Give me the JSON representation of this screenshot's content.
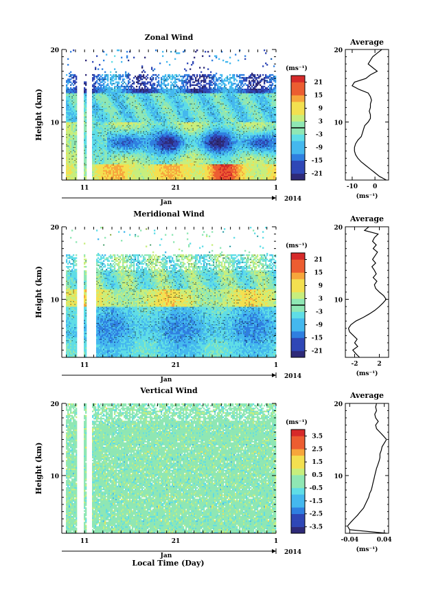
{
  "figure": {
    "xlabel_common": "Local Time (Day)",
    "colors": {
      "ramp": [
        "#2e2a78",
        "#2f47b6",
        "#2f7fe0",
        "#44b8ee",
        "#5fdde6",
        "#8fe7b4",
        "#c7ee7d",
        "#f3e050",
        "#f7a63c",
        "#ec5d31",
        "#d62a2a"
      ],
      "contour": "#000000",
      "zero_line": "#000000"
    }
  },
  "chart_data": [
    {
      "type": "heatmap",
      "id": "zonal",
      "title": "Zonal Wind",
      "ylabel": "Height (km)",
      "xlabel": "Jan",
      "year_label": "2014",
      "x_ticklabels": [
        "11",
        "21",
        "1"
      ],
      "x_tick_days": [
        11,
        21,
        32
      ],
      "x_range_days": [
        8.5,
        32
      ],
      "y_ticks": [
        10,
        20
      ],
      "ylim": [
        2,
        20
      ],
      "colorbar": {
        "unit": "(ms⁻¹)",
        "ticks": [
          "21",
          "15",
          "9",
          "3",
          "-3",
          "-9",
          "-15",
          "-21"
        ],
        "range": [
          -24,
          24
        ]
      },
      "gaps_days": [
        [
          10.2,
          10.9
        ],
        [
          11.2,
          11.8
        ]
      ],
      "description_fields": {
        "jet_height_km": 7,
        "jet_max_ms": -18,
        "surface_wind_ms": 15
      },
      "average_profile": {
        "title": "Average",
        "xlabel": "(ms⁻¹)",
        "x_ticklabels": [
          "-10",
          "0"
        ],
        "x_ticks": [
          -10,
          0
        ],
        "xlim": [
          -13,
          6
        ],
        "y_ticks": [
          10,
          20
        ],
        "ylim": [
          2,
          20
        ],
        "height_km": [
          2,
          2.5,
          3,
          3.5,
          4,
          4.5,
          5,
          5.5,
          6,
          6.5,
          7,
          7.5,
          8,
          8.5,
          9,
          9.5,
          10,
          10.5,
          11,
          11.5,
          12,
          12.5,
          13,
          13.5,
          14,
          14.5,
          15,
          15.5,
          16,
          16.5,
          17,
          17.5,
          18,
          18.5,
          19,
          19.5,
          20
        ],
        "value_ms": [
          5,
          2,
          0,
          -2,
          -4,
          -6,
          -7.5,
          -8.5,
          -9,
          -9,
          -8.5,
          -7.5,
          -6,
          -5.5,
          -5,
          -4.5,
          -3,
          -2,
          -2,
          -2.5,
          -2,
          -2,
          -1.5,
          -2,
          -3,
          -7,
          -10,
          -9,
          -4,
          -2,
          1,
          -1,
          -3,
          -2,
          -1,
          1,
          3
        ]
      }
    },
    {
      "type": "heatmap",
      "id": "meridional",
      "title": "Meridional Wind",
      "ylabel": "Height (km)",
      "xlabel": "Jan",
      "year_label": "2014",
      "x_ticklabels": [
        "11",
        "21",
        "1"
      ],
      "x_tick_days": [
        11,
        21,
        32
      ],
      "x_range_days": [
        8.5,
        32
      ],
      "y_ticks": [
        10,
        20
      ],
      "ylim": [
        2,
        20
      ],
      "colorbar": {
        "unit": "(ms⁻¹)",
        "ticks": [
          "21",
          "15",
          "9",
          "3",
          "-3",
          "-9",
          "-15",
          "-21"
        ],
        "range": [
          -24,
          24
        ]
      },
      "gaps_days": [
        [
          10.2,
          10.9
        ],
        [
          11.2,
          12.3
        ]
      ],
      "average_profile": {
        "title": "Average",
        "xlabel": "(ms⁻¹)",
        "x_ticklabels": [
          "-2",
          "2"
        ],
        "x_ticks": [
          -2,
          2
        ],
        "xlim": [
          -3.5,
          3.5
        ],
        "y_ticks": [
          10,
          20
        ],
        "ylim": [
          2,
          20
        ],
        "height_km": [
          2,
          2.5,
          3,
          3.5,
          4,
          4.5,
          5,
          5.5,
          6,
          6.5,
          7,
          7.5,
          8,
          8.5,
          9,
          9.5,
          10,
          10.5,
          11,
          11.5,
          12,
          12.5,
          13,
          13.5,
          14,
          14.5,
          15,
          15.5,
          16,
          16.5,
          17,
          17.5,
          18,
          18.5,
          19,
          19.5,
          20
        ],
        "value_ms": [
          -1.2,
          -1.8,
          -2.3,
          -1.5,
          -2.0,
          -1.6,
          -2.2,
          -2.8,
          -3.0,
          -2.6,
          -1.8,
          -0.6,
          0.4,
          1.3,
          2.0,
          2.6,
          3.1,
          2.7,
          2.0,
          1.4,
          1.2,
          1.6,
          1.0,
          1.5,
          1.2,
          0.8,
          1.4,
          0.9,
          1.3,
          1.7,
          1.0,
          1.5,
          0.9,
          1.2,
          1.8,
          -0.4,
          0.3
        ]
      }
    },
    {
      "type": "heatmap",
      "id": "vertical",
      "title": "Vertical Wind",
      "ylabel": "Height (km)",
      "xlabel": "Jan",
      "year_label": "2014",
      "x_ticklabels": [
        "11",
        "21",
        "1"
      ],
      "x_tick_days": [
        11,
        21,
        32
      ],
      "x_range_days": [
        8.5,
        32
      ],
      "y_ticks": [
        10,
        20
      ],
      "ylim": [
        2,
        20
      ],
      "colorbar": {
        "unit": "(ms⁻¹)",
        "ticks": [
          "3.5",
          "2.5",
          "1.5",
          "0.5",
          "-0.5",
          "-1.5",
          "-2.5",
          "-3.5"
        ],
        "range": [
          -4,
          4
        ]
      },
      "gaps_days": [
        [
          10.2,
          10.9
        ],
        [
          11.2,
          11.8
        ]
      ],
      "average_profile": {
        "title": "Average",
        "xlabel": "(ms⁻¹)",
        "x_ticklabels": [
          "-0.04",
          "0.04"
        ],
        "x_ticks": [
          -0.04,
          0.04
        ],
        "xlim": [
          -0.05,
          0.05
        ],
        "y_ticks": [
          10,
          20
        ],
        "ylim": [
          2,
          20
        ],
        "height_km": [
          2,
          2.5,
          3,
          3.5,
          4,
          4.5,
          5,
          5.5,
          6,
          6.5,
          7,
          7.5,
          8,
          8.5,
          9,
          9.5,
          10,
          10.5,
          11,
          11.5,
          12,
          12.5,
          13,
          13.5,
          14,
          14.5,
          15,
          15.5,
          16,
          16.5,
          17,
          17.5,
          18,
          18.5,
          19,
          19.5,
          20
        ],
        "value_ms": [
          0.045,
          -0.04,
          -0.045,
          -0.038,
          -0.03,
          -0.022,
          -0.015,
          -0.008,
          -0.004,
          0.0,
          0.004,
          0.006,
          0.01,
          0.012,
          0.014,
          0.016,
          0.018,
          0.02,
          0.022,
          0.025,
          0.028,
          0.03,
          0.03,
          0.033,
          0.035,
          0.04,
          0.045,
          0.038,
          0.03,
          0.022,
          0.02,
          0.026,
          0.02,
          0.018,
          0.022,
          0.02,
          0.022
        ]
      }
    }
  ]
}
